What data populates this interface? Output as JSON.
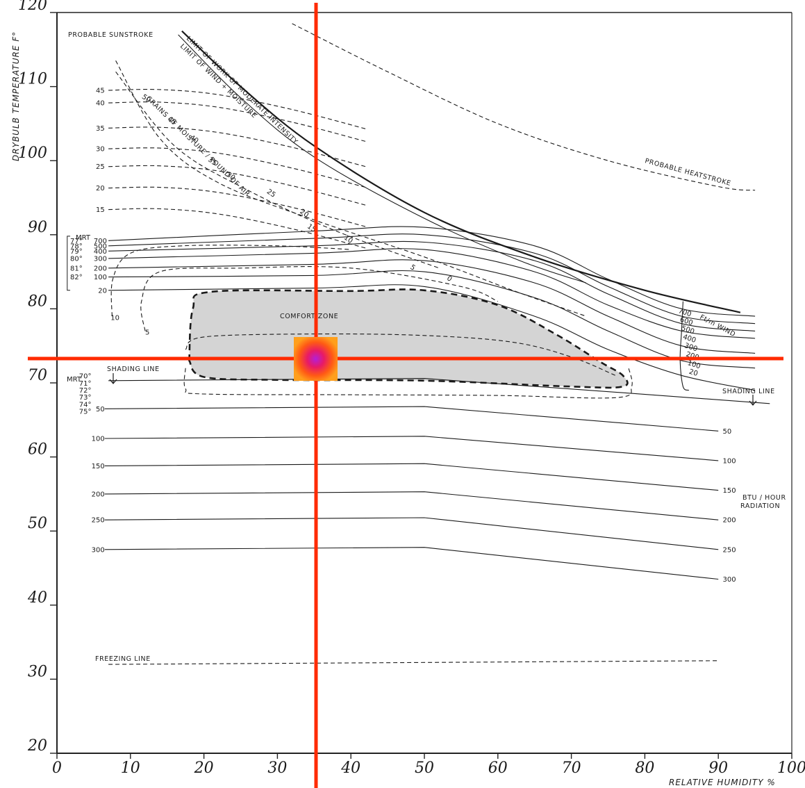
{
  "chart_data": {
    "type": "line",
    "ylabel": "DRYBULB TEMPERATURE F°",
    "xlabel": "RELATIVE HUMIDITY %",
    "xlim": [
      0,
      100
    ],
    "ylim": [
      20,
      120
    ],
    "x_ticks": [
      "0",
      "10",
      "20",
      "30",
      "40",
      "50",
      "60",
      "70",
      "80",
      "90",
      "100"
    ],
    "y_ticks": [
      "20",
      "30",
      "40",
      "50",
      "60",
      "70",
      "80",
      "90",
      "100",
      "110",
      "120"
    ],
    "grid": false,
    "annotations": {
      "sunstroke": "PROBABLE SUNSTROKE",
      "heatstroke": "PROBABLE HEATSTROKE",
      "work_limit": "LIMIT OF WORK OF MODERATE INTENSITY",
      "wind_limit": "LIMIT OF WIND + MOISTURE",
      "grains": "GRAINS OF MOISTURE / POUND OF AIR",
      "comfort_zone": "COMFORT ZONE",
      "shading_line": "SHADING LINE",
      "freezing_line": "FREEZING LINE",
      "wind": "Ft/m WIND",
      "radiation": "BTU / HOUR RADIATION",
      "mrt": "MRT"
    },
    "grains_labels": [
      "45",
      "40",
      "35",
      "30",
      "25",
      "20",
      "15"
    ],
    "grains_diag_labels": [
      "50",
      "45",
      "40",
      "35",
      "30",
      "25",
      "20",
      "15",
      "10",
      "5",
      "0"
    ],
    "wind_series": [
      {
        "name": "700",
        "mrt": "77°",
        "values_at": {
          "7": 89.2,
          "35": 90.5,
          "50": 91,
          "65": 88.5,
          "75": 84,
          "85": 80,
          "95": 79
        }
      },
      {
        "name": "500",
        "mrt": "78°",
        "values_at": {
          "7": 88.5,
          "35": 89.5,
          "50": 90,
          "65": 87.5,
          "75": 83,
          "85": 79,
          "95": 78
        }
      },
      {
        "name": "400",
        "mrt": "79°",
        "values_at": {
          "7": 87.8,
          "35": 88.5,
          "50": 89,
          "65": 86.5,
          "75": 82,
          "85": 78,
          "95": 77
        }
      },
      {
        "name": "300",
        "mrt": "80°",
        "values_at": {
          "7": 86.8,
          "35": 87.5,
          "50": 88,
          "65": 85,
          "75": 80.5,
          "85": 77,
          "95": 76
        }
      },
      {
        "name": "200",
        "mrt": "81°",
        "values_at": {
          "7": 85.5,
          "35": 86,
          "50": 86.5,
          "65": 83.5,
          "75": 79,
          "85": 75,
          "95": 74
        }
      },
      {
        "name": "100",
        "mrt": "82°",
        "values_at": {
          "7": 84.3,
          "35": 84.5,
          "50": 85,
          "65": 81.5,
          "75": 77,
          "85": 73,
          "95": 72
        }
      },
      {
        "name": "20",
        "values_at": {
          "7": 82.5,
          "35": 82.8,
          "50": 83,
          "65": 79,
          "75": 74.5,
          "85": 71,
          "95": 69
        }
      }
    ],
    "wind_labels_right": [
      "700",
      "600",
      "500",
      "400",
      "300",
      "200",
      "100",
      "20"
    ],
    "mrt_upper": [
      "77°",
      "78°",
      "79°",
      "80°",
      "81°",
      "82°"
    ],
    "mrt_upper_values": [
      "700",
      "500",
      "400",
      "300",
      "200",
      "100",
      "20"
    ],
    "mrt_lower": [
      "70°",
      "71°",
      "72°",
      "73°",
      "74°",
      "75°"
    ],
    "radiation_series": [
      {
        "name": "50",
        "y_left": 66.5,
        "y_right": 63.5
      },
      {
        "name": "100",
        "y_left": 62.5,
        "y_right": 59.5
      },
      {
        "name": "150",
        "y_left": 58.8,
        "y_right": 55.5
      },
      {
        "name": "200",
        "y_left": 55,
        "y_right": 51.5
      },
      {
        "name": "250",
        "y_left": 51.5,
        "y_right": 47.5
      },
      {
        "name": "300",
        "y_left": 47.5,
        "y_right": 43.5
      }
    ],
    "comfort_zone": {
      "x_range": [
        18,
        77
      ],
      "y_range": [
        70,
        82
      ]
    },
    "freezing_line_y": 32,
    "shading_line_y": 70.3
  }
}
